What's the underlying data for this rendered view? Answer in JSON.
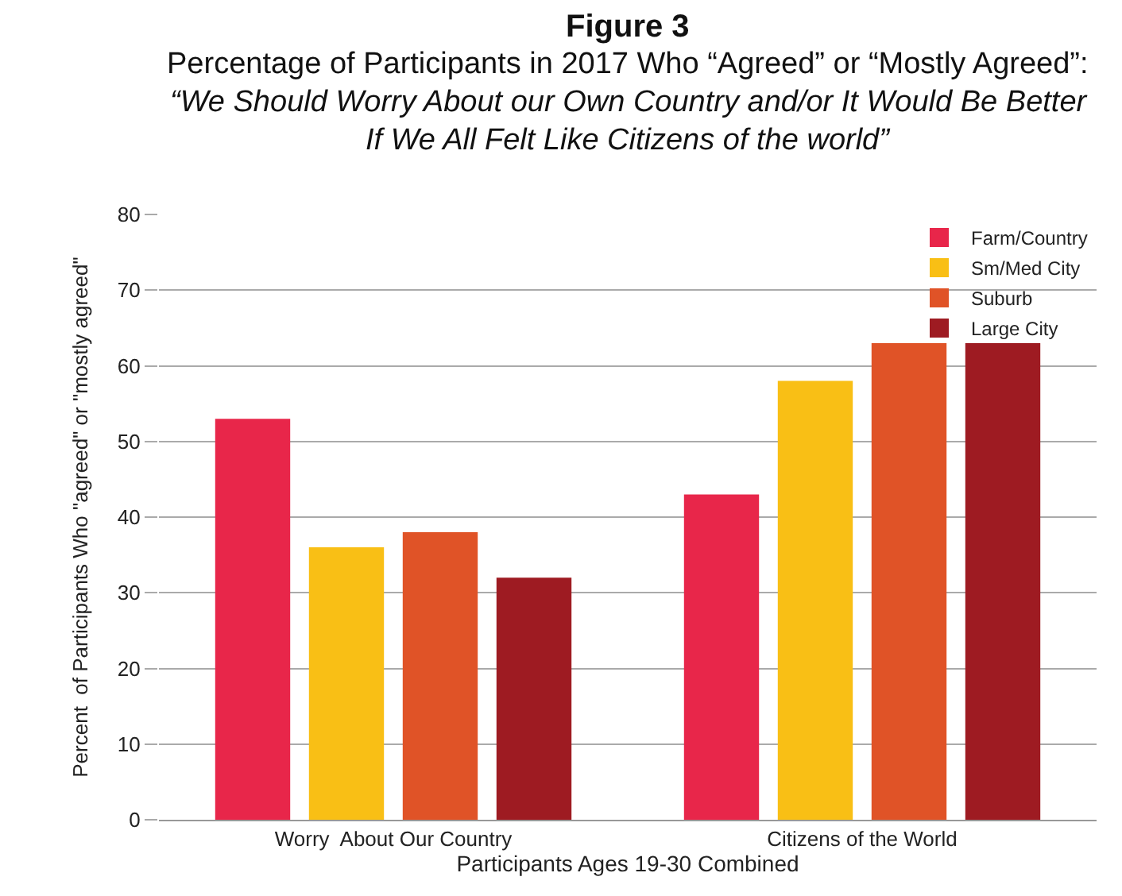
{
  "chart_data": {
    "type": "bar",
    "title": "Figure 3",
    "subtitle": "Percentage of Participants in 2017 Who “Agreed” or “Mostly Agreed”:\n“We Should Worry About our Own Country and/or It Would Be Better\nIf We All Felt Like Citizens of the world”",
    "xlabel": "Participants Ages 19-30 Combined",
    "ylabel": "Percent  of Participants Who \"agreed\" or \"mostly agreed\"",
    "categories": [
      "Worry  About Our Country",
      "Citizens of the World"
    ],
    "series": [
      {
        "name": "Farm/Country",
        "color": "#e8264a",
        "values": [
          53,
          43
        ]
      },
      {
        "name": "Sm/Med City",
        "color": "#f9bf15",
        "values": [
          36,
          58
        ]
      },
      {
        "name": "Suburb",
        "color": "#e05327",
        "values": [
          38,
          63
        ]
      },
      {
        "name": "Large City",
        "color": "#9e1b22",
        "values": [
          32,
          63
        ]
      }
    ],
    "ylim": [
      0,
      80
    ],
    "yticks": [
      0,
      10,
      20,
      30,
      40,
      50,
      60,
      70,
      80
    ],
    "grid": "y",
    "legend": "top right"
  }
}
